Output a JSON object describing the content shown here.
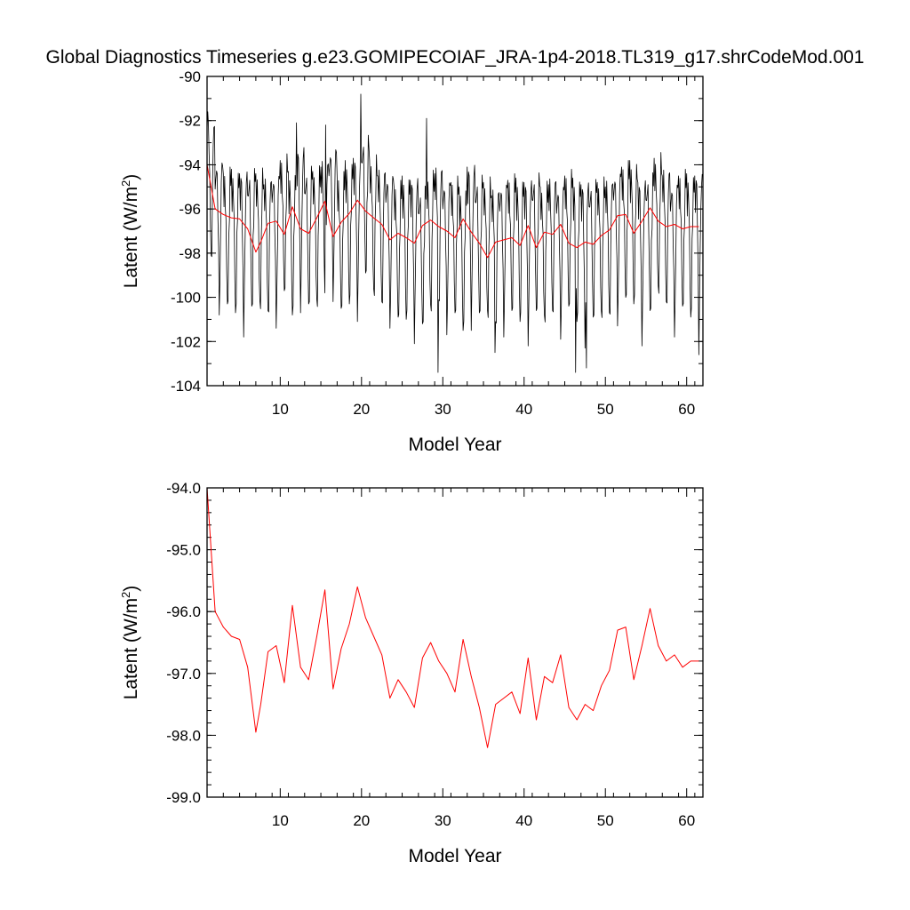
{
  "title": "Global Diagnostics Timeseries g.e23.GOMIPECOIAF_JRA-1p4-2018.TL319_g17.shrCodeMod.001",
  "colors": {
    "monthly": "#000000",
    "annual": "#ff0000"
  },
  "chart_data": [
    {
      "type": "line",
      "xlabel": "Model Year",
      "ylabel_main": "Latent (W/m",
      "ylabel_sup": "2",
      "ylabel_tail": ")",
      "xlim": [
        1,
        62
      ],
      "ylim": [
        -104,
        -90
      ],
      "xticks": [
        10,
        20,
        30,
        40,
        50,
        60
      ],
      "xtick_labels": [
        "10",
        "20",
        "30",
        "40",
        "50",
        "60"
      ],
      "yticks": [
        -104,
        -102,
        -100,
        -98,
        -96,
        -94,
        -92,
        -90
      ],
      "ytick_labels": [
        "-104",
        "-102",
        "-100",
        "-98",
        "-96",
        "-94",
        "-92",
        "-90"
      ],
      "series": [
        {
          "kind": "monthly",
          "color": "#000000",
          "x_start": 1.0,
          "x_step": 0.08333,
          "seasonal_pattern": [
            -94.6,
            -95.2,
            -94.3,
            -94.8,
            -96.3,
            -98.4,
            -100.6,
            -99.6,
            -97.0,
            -95.5,
            -94.0,
            -94.3
          ],
          "annual_adjust": [
            1.8,
            0.2,
            -0.4,
            -0.5,
            -0.5,
            -0.4,
            -0.5,
            -0.7,
            -0.4,
            0.2,
            -0.6,
            0.6,
            -0.3,
            -0.4,
            0.1,
            0.8,
            -0.6,
            -0.1,
            0.2,
            1.1,
            0.1,
            -0.3,
            -0.4,
            -1.0,
            -0.8,
            -0.8,
            -1.2,
            -0.6,
            -0.2,
            -0.7,
            -0.8,
            -1.3,
            -0.2,
            -0.7,
            -0.9,
            -1.2,
            -0.8,
            -0.7,
            -0.9,
            -0.9,
            -0.6,
            -1.1,
            -0.7,
            -0.9,
            -0.5,
            -0.9,
            -1.0,
            -0.9,
            -0.9,
            -0.8,
            -0.3,
            -0.1,
            -0.1,
            -0.9,
            -0.6,
            0.2,
            -0.3,
            -0.8,
            -0.5,
            -0.7,
            -0.6
          ],
          "noise": [
            0.4,
            -0.3,
            0.6,
            -0.5,
            0.2,
            -0.4,
            0.7,
            -0.6,
            0.3,
            0.5,
            -0.2,
            0.4,
            -0.7,
            0.6,
            -0.3,
            0.2,
            -0.5,
            0.8,
            -0.4,
            0.3,
            -0.6,
            0.5,
            -0.2,
            0.1,
            0.6,
            -0.5,
            0.3,
            -0.8,
            0.4,
            -0.1,
            0.7,
            -0.3,
            0.2,
            -0.6,
            0.5,
            -0.4,
            0.9,
            -0.7,
            0.3,
            -0.2,
            0.6,
            -0.5
          ],
          "spikes": [
            [
              1.1,
              -91.6
            ],
            [
              12.0,
              -92.1
            ],
            [
              15.6,
              -92.2
            ],
            [
              19.9,
              -90.8
            ],
            [
              28.0,
              -91.9
            ],
            [
              29.4,
              -103.4
            ],
            [
              36.4,
              -102.5
            ],
            [
              46.3,
              -103.4
            ],
            [
              47.7,
              -103.2
            ],
            [
              61.5,
              -102.6
            ]
          ]
        },
        {
          "kind": "annual",
          "color": "#ff0000",
          "x": [
            1.0,
            2.0,
            3.0,
            4.0,
            5.0,
            6.0,
            7.0,
            7.6,
            8.5,
            9.5,
            10.5,
            11.5,
            12.5,
            13.5,
            14.5,
            15.5,
            16.5,
            17.5,
            18.5,
            19.5,
            20.5,
            21.5,
            22.5,
            23.5,
            24.5,
            25.5,
            26.5,
            27.5,
            28.5,
            29.5,
            30.5,
            31.5,
            32.5,
            33.5,
            34.5,
            35.5,
            36.5,
            37.5,
            38.5,
            39.5,
            40.5,
            41.5,
            42.5,
            43.5,
            44.5,
            45.5,
            46.5,
            47.5,
            48.5,
            49.5,
            50.5,
            51.5,
            52.5,
            53.5,
            54.5,
            55.5,
            56.5,
            57.5,
            58.5,
            59.5,
            60.5,
            61.5
          ],
          "values": [
            -94.0,
            -96.0,
            -96.25,
            -96.4,
            -96.45,
            -96.9,
            -97.95,
            -97.5,
            -96.65,
            -96.55,
            -97.15,
            -95.9,
            -96.9,
            -97.1,
            -96.4,
            -95.65,
            -97.25,
            -96.6,
            -96.2,
            -95.6,
            -96.1,
            -96.4,
            -96.7,
            -97.4,
            -97.1,
            -97.3,
            -97.55,
            -96.75,
            -96.5,
            -96.8,
            -97.0,
            -97.3,
            -96.45,
            -97.05,
            -97.55,
            -98.2,
            -97.5,
            -97.4,
            -97.3,
            -97.65,
            -96.75,
            -97.75,
            -97.05,
            -97.15,
            -96.7,
            -97.55,
            -97.75,
            -97.5,
            -97.6,
            -97.2,
            -96.95,
            -96.3,
            -96.25,
            -97.1,
            -96.55,
            -95.95,
            -96.55,
            -96.8,
            -96.7,
            -96.9,
            -96.8,
            -96.8
          ]
        }
      ]
    },
    {
      "type": "line",
      "xlabel": "Model Year",
      "ylabel_main": "Latent (W/m",
      "ylabel_sup": "2",
      "ylabel_tail": ")",
      "xlim": [
        1,
        62
      ],
      "ylim": [
        -99,
        -94
      ],
      "xticks": [
        10,
        20,
        30,
        40,
        50,
        60
      ],
      "xtick_labels": [
        "10",
        "20",
        "30",
        "40",
        "50",
        "60"
      ],
      "yticks": [
        -99,
        -98,
        -97,
        -96,
        -95,
        -94
      ],
      "ytick_labels": [
        "-99.0",
        "-98.0",
        "-97.0",
        "-96.0",
        "-95.0",
        "-94.0"
      ],
      "series": [
        {
          "kind": "annual",
          "color": "#ff0000",
          "x": [
            1.0,
            2.0,
            3.0,
            4.0,
            5.0,
            6.0,
            7.0,
            7.6,
            8.5,
            9.5,
            10.5,
            11.5,
            12.5,
            13.5,
            14.5,
            15.5,
            16.5,
            17.5,
            18.5,
            19.5,
            20.5,
            21.5,
            22.5,
            23.5,
            24.5,
            25.5,
            26.5,
            27.5,
            28.5,
            29.5,
            30.5,
            31.5,
            32.5,
            33.5,
            34.5,
            35.5,
            36.5,
            37.5,
            38.5,
            39.5,
            40.5,
            41.5,
            42.5,
            43.5,
            44.5,
            45.5,
            46.5,
            47.5,
            48.5,
            49.5,
            50.5,
            51.5,
            52.5,
            53.5,
            54.5,
            55.5,
            56.5,
            57.5,
            58.5,
            59.5,
            60.5,
            61.5
          ],
          "values": [
            -94.0,
            -96.0,
            -96.25,
            -96.4,
            -96.45,
            -96.9,
            -97.95,
            -97.5,
            -96.65,
            -96.55,
            -97.15,
            -95.9,
            -96.9,
            -97.1,
            -96.4,
            -95.65,
            -97.25,
            -96.6,
            -96.2,
            -95.6,
            -96.1,
            -96.4,
            -96.7,
            -97.4,
            -97.1,
            -97.3,
            -97.55,
            -96.75,
            -96.5,
            -96.8,
            -97.0,
            -97.3,
            -96.45,
            -97.05,
            -97.55,
            -98.2,
            -97.5,
            -97.4,
            -97.3,
            -97.65,
            -96.75,
            -97.75,
            -97.05,
            -97.15,
            -96.7,
            -97.55,
            -97.75,
            -97.5,
            -97.6,
            -97.2,
            -96.95,
            -96.3,
            -96.25,
            -97.1,
            -96.55,
            -95.95,
            -96.55,
            -96.8,
            -96.7,
            -96.9,
            -96.8,
            -96.8
          ]
        }
      ]
    }
  ]
}
